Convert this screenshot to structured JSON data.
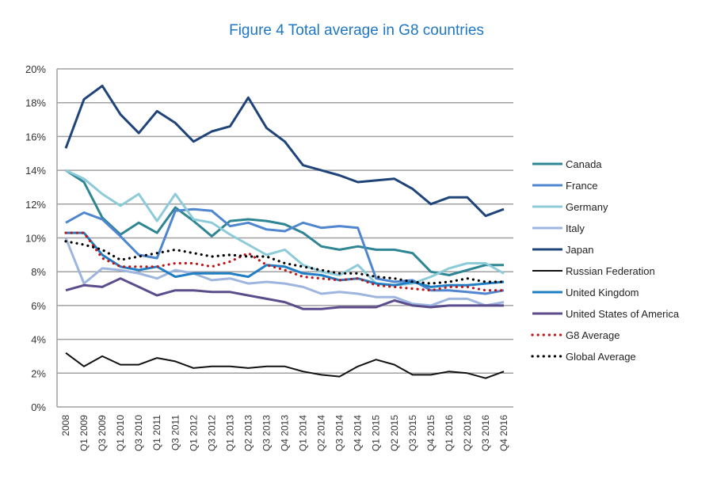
{
  "chart_data": {
    "type": "line",
    "title": "Figure 4 Total average in G8 countries",
    "xlabel": "",
    "ylabel": "",
    "ylim": [
      0,
      20
    ],
    "yticks": [
      "0%",
      "2%",
      "4%",
      "6%",
      "8%",
      "10%",
      "12%",
      "14%",
      "16%",
      "18%",
      "20%"
    ],
    "ytick_values": [
      0,
      2,
      4,
      6,
      8,
      10,
      12,
      14,
      16,
      18,
      20
    ],
    "grid": true,
    "legend_position": "right",
    "categories": [
      "2008",
      "Q1 2009",
      "Q3 2009",
      "Q1 2010",
      "Q3 2010",
      "Q1 2011",
      "Q3 2011",
      "Q1 2012",
      "Q3 2012",
      "Q1 2013",
      "Q2 2013",
      "Q3 2013",
      "Q4 2013",
      "Q1 2014",
      "Q2 2014",
      "Q3 2014",
      "Q4 2014",
      "Q1 2015",
      "Q2 2015",
      "Q3 2015",
      "Q4 2015",
      "Q1 2016",
      "Q2 2016",
      "Q3 2016",
      "Q4 2016"
    ],
    "series": [
      {
        "name": "Canada",
        "color": "#2e8593",
        "style": "solid",
        "values": [
          14.0,
          13.3,
          11.2,
          10.2,
          10.9,
          10.3,
          11.8,
          11.0,
          10.1,
          11.0,
          11.1,
          11.0,
          10.8,
          10.3,
          9.5,
          9.3,
          9.5,
          9.3,
          9.3,
          9.1,
          8.0,
          7.8,
          8.1,
          8.4,
          8.4
        ]
      },
      {
        "name": "France",
        "color": "#4f86cf",
        "style": "solid",
        "values": [
          10.9,
          11.5,
          11.1,
          10.1,
          9.0,
          8.8,
          11.6,
          11.7,
          11.6,
          10.7,
          10.9,
          10.5,
          10.4,
          10.9,
          10.6,
          10.7,
          10.6,
          7.6,
          7.4,
          7.5,
          6.9,
          6.9,
          6.8,
          6.7,
          6.9
        ]
      },
      {
        "name": "Germany",
        "color": "#8dcbd9",
        "style": "solid",
        "values": [
          14.0,
          13.5,
          12.6,
          11.9,
          12.6,
          11.0,
          12.6,
          11.1,
          10.9,
          10.2,
          9.6,
          9.0,
          9.3,
          8.4,
          8.0,
          7.8,
          8.4,
          7.3,
          7.2,
          7.3,
          7.7,
          8.2,
          8.5,
          8.5,
          7.9
        ]
      },
      {
        "name": "Italy",
        "color": "#9db5df",
        "style": "solid",
        "values": [
          10.0,
          7.3,
          8.2,
          8.1,
          7.9,
          7.6,
          8.1,
          7.9,
          7.5,
          7.6,
          7.3,
          7.4,
          7.3,
          7.1,
          6.7,
          6.8,
          6.7,
          6.5,
          6.5,
          6.1,
          6.0,
          6.4,
          6.4,
          6.0,
          6.2
        ]
      },
      {
        "name": "Japan",
        "color": "#1f4479",
        "style": "solid",
        "values": [
          15.3,
          18.2,
          19.0,
          17.3,
          16.2,
          17.5,
          16.8,
          15.7,
          16.3,
          16.6,
          18.3,
          16.5,
          15.7,
          14.3,
          14.0,
          13.7,
          13.3,
          13.4,
          13.5,
          12.9,
          12.0,
          12.4,
          12.4,
          11.3,
          11.7
        ]
      },
      {
        "name": "Russian Federation",
        "color": "#111111",
        "style": "solid",
        "values": [
          3.2,
          2.4,
          3.0,
          2.5,
          2.5,
          2.9,
          2.7,
          2.3,
          2.4,
          2.4,
          2.3,
          2.4,
          2.4,
          2.1,
          1.9,
          1.8,
          2.4,
          2.8,
          2.5,
          1.9,
          1.9,
          2.1,
          2.0,
          1.7,
          2.1
        ]
      },
      {
        "name": "United Kingdom",
        "color": "#1f7ec4",
        "style": "solid",
        "values": [
          10.3,
          10.3,
          9.0,
          8.3,
          8.1,
          8.3,
          7.7,
          7.9,
          7.9,
          7.9,
          7.7,
          8.4,
          8.3,
          7.9,
          7.8,
          7.5,
          7.6,
          7.3,
          7.2,
          7.4,
          7.1,
          7.2,
          7.2,
          7.3,
          7.4
        ]
      },
      {
        "name": "United States of America",
        "color": "#5b4d8c",
        "style": "solid",
        "values": [
          6.9,
          7.2,
          7.1,
          7.6,
          7.1,
          6.6,
          6.9,
          6.9,
          6.8,
          6.8,
          6.6,
          6.4,
          6.2,
          5.8,
          5.8,
          5.9,
          5.9,
          5.9,
          6.3,
          6.0,
          5.9,
          6.0,
          6.0,
          6.0,
          6.0
        ]
      },
      {
        "name": "G8 Average",
        "color": "#c0161b",
        "style": "dotted",
        "values": [
          10.3,
          10.3,
          8.8,
          8.3,
          8.3,
          8.3,
          8.5,
          8.5,
          8.3,
          8.6,
          9.1,
          8.4,
          8.1,
          7.7,
          7.6,
          7.5,
          7.6,
          7.2,
          7.1,
          7.0,
          6.9,
          7.1,
          7.1,
          6.9,
          6.9
        ]
      },
      {
        "name": "Global Average",
        "color": "#000000",
        "style": "dotted",
        "values": [
          9.8,
          9.6,
          9.3,
          8.7,
          8.9,
          9.1,
          9.3,
          9.1,
          8.9,
          9.0,
          8.9,
          8.9,
          8.5,
          8.3,
          8.1,
          7.9,
          7.9,
          7.7,
          7.6,
          7.4,
          7.3,
          7.4,
          7.6,
          7.4,
          7.4
        ]
      }
    ]
  }
}
